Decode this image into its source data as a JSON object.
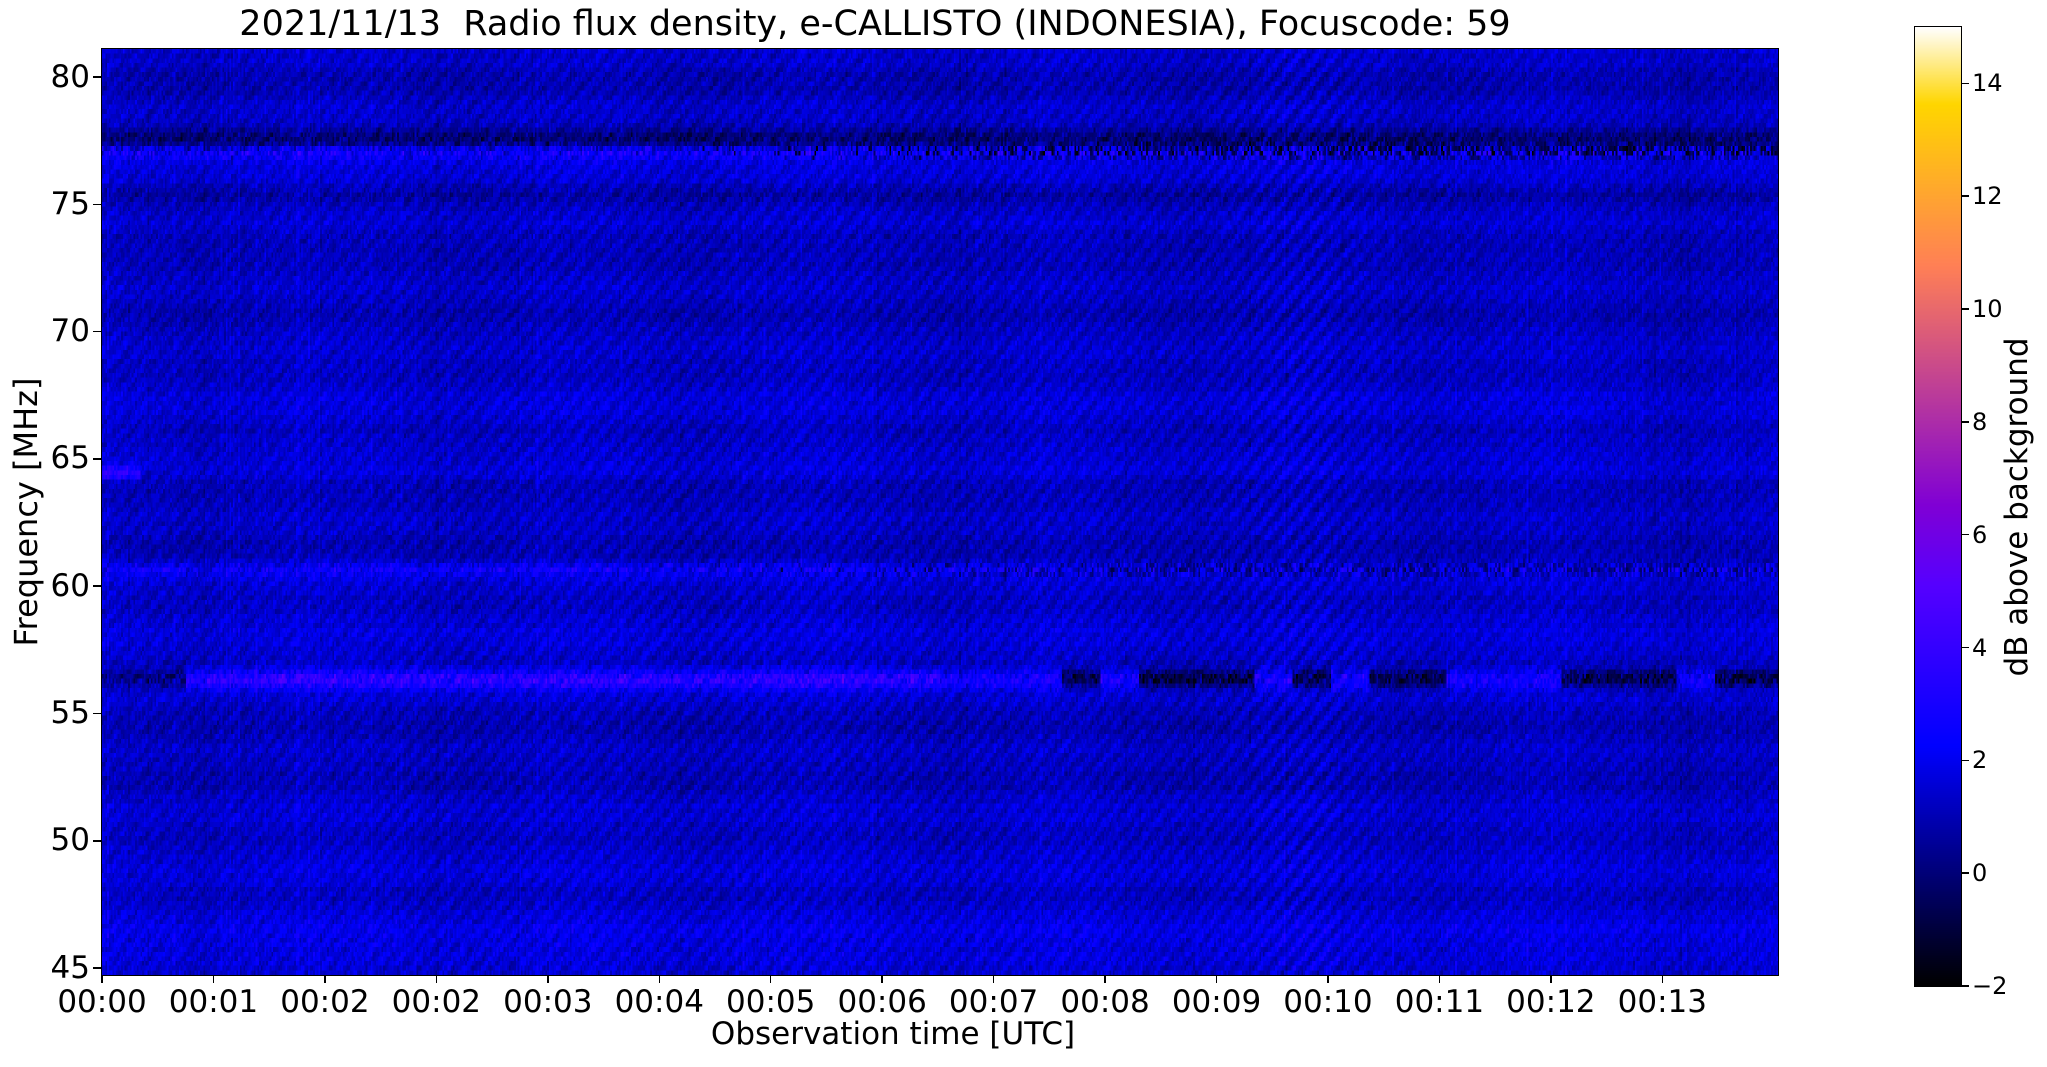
{
  "chart_data": {
    "type": "heatmap",
    "title": "2021/11/13  Radio flux density, e-CALLISTO (INDONESIA), Focuscode: 59",
    "xlabel": "Observation time [UTC]",
    "ylabel": "Frequency [MHz]",
    "x_tick_labels": [
      "00:00",
      "00:01",
      "00:02",
      "00:02",
      "00:03",
      "00:04",
      "00:05",
      "00:06",
      "00:07",
      "00:08",
      "00:09",
      "00:10",
      "00:11",
      "00:12",
      "00:13"
    ],
    "y_tick_labels": [
      "80",
      "75",
      "70",
      "65",
      "60",
      "55",
      "50",
      "45"
    ],
    "y_ticks_mhz": [
      80,
      75,
      70,
      65,
      60,
      55,
      50,
      45
    ],
    "y_range_mhz": [
      44.73,
      81.1
    ],
    "x_range_utc": [
      "00:00",
      "00:14"
    ],
    "grid": false,
    "legend": "none",
    "colorbar": {
      "label": "dB above background",
      "tick_labels": [
        "14",
        "12",
        "10",
        "8",
        "6",
        "4",
        "2",
        "0",
        "−2"
      ],
      "ticks_db": [
        14,
        12,
        10,
        8,
        6,
        4,
        2,
        0,
        -2
      ],
      "range_db": [
        -2,
        15
      ],
      "colormap": "gnuplot2"
    },
    "background_level_db": 1.22,
    "texture": {
      "time_bins": 960,
      "freq_bins": 200,
      "diagonal_stripe_amplitude_db": 0.34,
      "noise_amplitude_db": 1.15,
      "interference_focus_time_frac": 0.715
    },
    "features": [
      {
        "freq_mhz": 77.55,
        "width_mhz": 0.45,
        "kind": "dark",
        "strength": 1.5,
        "description": "Dark absorption-like band just above 77 MHz"
      },
      {
        "freq_mhz": 77.05,
        "width_mhz": 0.28,
        "kind": "flicker",
        "strength": 2.4,
        "dark_mix": 0.5,
        "description": "Intermittent bright/dark RFI line at 77 MHz"
      },
      {
        "freq_mhz": 75.4,
        "width_mhz": 0.45,
        "kind": "dark",
        "strength": 0.6,
        "description": "Faint dark band near 75.4 MHz"
      },
      {
        "freq_mhz": 73.8,
        "width_mhz": 0.4,
        "kind": "dark",
        "strength": 0.4,
        "description": "Faint dark band near 73.8 MHz"
      },
      {
        "freq_mhz": 64.45,
        "width_mhz": 0.26,
        "kind": "start_blob",
        "strength": 3.0,
        "description": "Bright carrier at 64.5 MHz, strongest in the first seconds after 00:00"
      },
      {
        "freq_mhz": 60.65,
        "width_mhz": 0.28,
        "kind": "flicker",
        "strength": 1.5,
        "dark_mix": 0.55,
        "description": "Weak intermittent RFI line at 60.6 MHz with dark dropouts"
      },
      {
        "freq_mhz": 56.35,
        "width_mhz": 0.36,
        "kind": "half_bright",
        "strength": 3.2,
        "description": "Strong RFI line at 56.3 MHz: bright until ~00:07, alternating bright/dark afterwards"
      },
      {
        "freq_mhz": 46.2,
        "width_mhz": 1.0,
        "kind": "broad_bright",
        "strength": 0.8,
        "description": "Broad enhanced band near 46 MHz"
      },
      {
        "freq_mhz": 45.3,
        "width_mhz": 0.6,
        "kind": "broad_bright",
        "strength": 0.7,
        "description": "Bright rows at the 45 MHz bottom edge"
      }
    ]
  }
}
